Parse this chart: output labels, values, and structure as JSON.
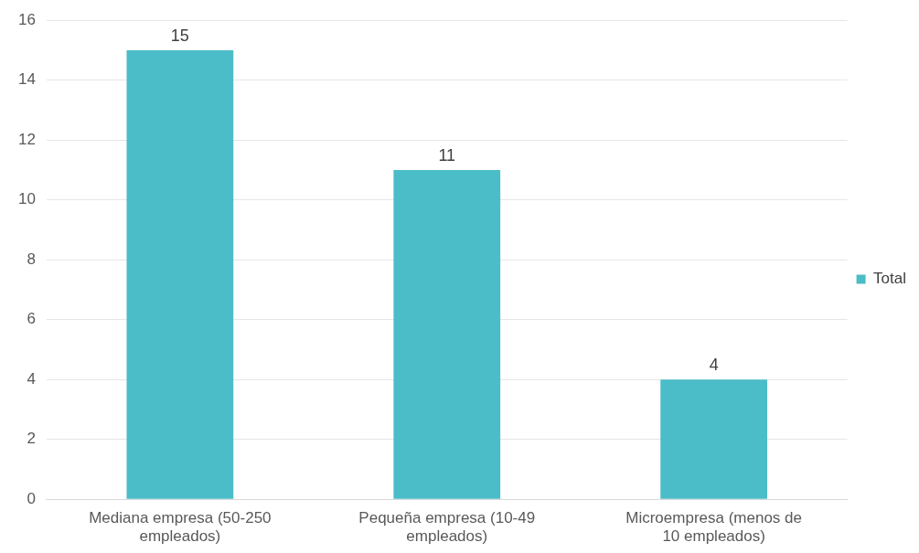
{
  "chart_data": {
    "type": "bar",
    "categories": [
      "Mediana empresa (50-250 empleados)",
      "Pequeña empresa (10-49 empleados)",
      "Microempresa (menos de 10 empleados)"
    ],
    "series": [
      {
        "name": "Total",
        "color": "#4bbdc8",
        "values": [
          15,
          11,
          4
        ]
      }
    ],
    "ylim": [
      0,
      16
    ],
    "yticks": [
      0,
      2,
      4,
      6,
      8,
      10,
      12,
      14,
      16
    ],
    "grid": "y",
    "legend": "right",
    "data_labels": true
  }
}
